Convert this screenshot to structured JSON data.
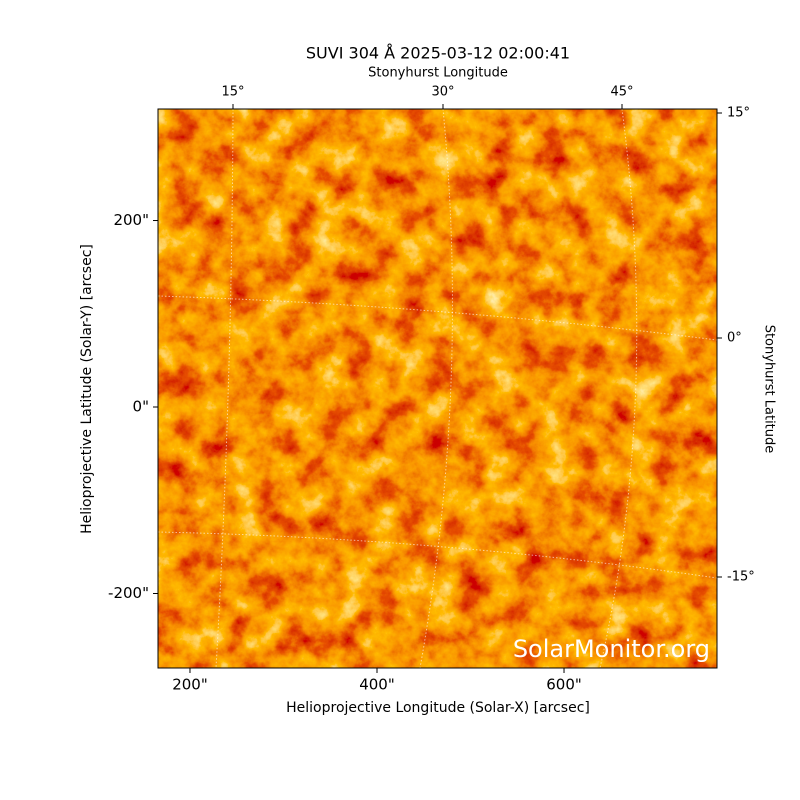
{
  "chart_data": {
    "type": "image",
    "title": "SUVI 304 Å 2025-03-12 02:00:41",
    "xlabel": "Helioprojective Longitude (Solar-X) [arcsec]",
    "ylabel": "Helioprojective Latitude (Solar-Y) [arcsec]",
    "top_label": "Stonyhurst Longitude",
    "right_label": "Stonyhurst Latitude",
    "xlim": [
      165.8,
      763.6
    ],
    "ylim": [
      -279.9,
      319.6
    ],
    "xticks": [
      {
        "value": 200,
        "label": "200\""
      },
      {
        "value": 400,
        "label": "400\""
      },
      {
        "value": 600,
        "label": "600\""
      }
    ],
    "yticks": [
      {
        "value": -200,
        "label": "-200\""
      },
      {
        "value": 0,
        "label": "0\""
      },
      {
        "value": 200,
        "label": "200\""
      }
    ],
    "top_ticks": [
      {
        "value": 15,
        "label": "15°"
      },
      {
        "value": 30,
        "label": "30°"
      },
      {
        "value": 45,
        "label": "45°"
      }
    ],
    "right_ticks": [
      {
        "value": 15,
        "label": "15°"
      },
      {
        "value": 0,
        "label": "0°"
      },
      {
        "value": -15,
        "label": "-15°"
      }
    ],
    "watermark": "SolarMonitor.org",
    "grid": true
  }
}
